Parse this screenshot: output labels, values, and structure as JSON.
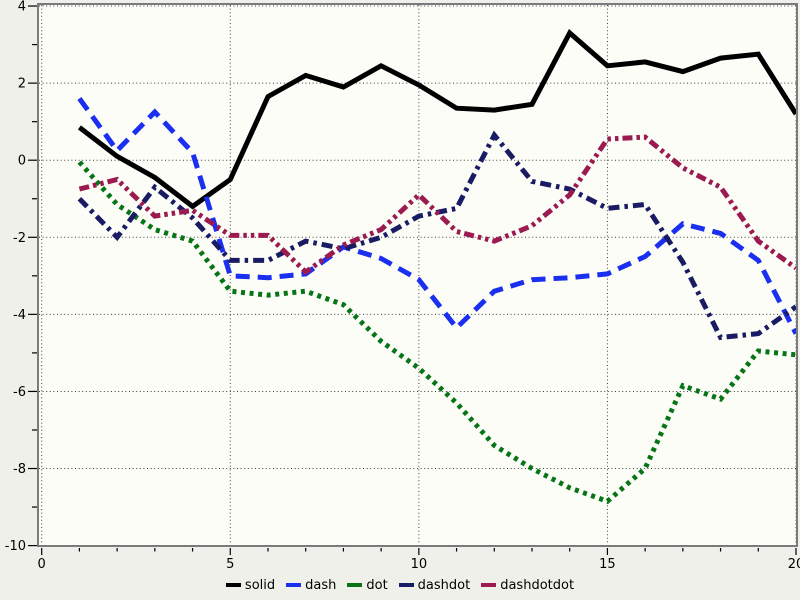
{
  "chart_data": {
    "type": "line",
    "title": "",
    "xlabel": "",
    "ylabel": "",
    "x": [
      1,
      2,
      3,
      4,
      5,
      6,
      7,
      8,
      9,
      10,
      11,
      12,
      13,
      14,
      15,
      16,
      17,
      18,
      19,
      20
    ],
    "series": [
      {
        "name": "solid",
        "dash_style": "solid",
        "color": "#000000",
        "values": [
          0.85,
          0.1,
          -0.45,
          -1.2,
          -0.5,
          1.65,
          2.2,
          1.9,
          2.45,
          1.95,
          1.35,
          1.3,
          1.45,
          3.3,
          2.45,
          2.55,
          2.3,
          2.65,
          2.75,
          1.2
        ]
      },
      {
        "name": "dash",
        "dash_style": "dash",
        "color": "#1b2ff0",
        "values": [
          1.6,
          0.25,
          1.25,
          0.2,
          -3.0,
          -3.05,
          -2.95,
          -2.25,
          -2.55,
          -3.1,
          -4.35,
          -3.4,
          -3.1,
          -3.05,
          -2.95,
          -2.5,
          -1.65,
          -1.9,
          -2.6,
          -4.5
        ]
      },
      {
        "name": "dot",
        "dash_style": "dot",
        "color": "#077417",
        "values": [
          -0.05,
          -1.15,
          -1.8,
          -2.1,
          -3.4,
          -3.5,
          -3.4,
          -3.75,
          -4.7,
          -5.4,
          -6.3,
          -7.4,
          -8.0,
          -8.5,
          -8.85,
          -8.0,
          -5.85,
          -6.2,
          -4.95,
          -5.05
        ]
      },
      {
        "name": "dashdot",
        "dash_style": "dashdot",
        "color": "#191b63",
        "values": [
          -1.0,
          -2.0,
          -0.7,
          -1.5,
          -2.6,
          -2.6,
          -2.1,
          -2.3,
          -2.0,
          -1.45,
          -1.25,
          0.65,
          -0.55,
          -0.75,
          -1.25,
          -1.15,
          -2.65,
          -4.6,
          -4.5,
          -3.8
        ]
      },
      {
        "name": "dashdotdot",
        "dash_style": "dashdotdot",
        "color": "#9b1b50",
        "values": [
          -0.75,
          -0.5,
          -1.45,
          -1.3,
          -1.95,
          -1.95,
          -2.9,
          -2.2,
          -1.8,
          -0.9,
          -1.85,
          -2.1,
          -1.7,
          -0.9,
          0.55,
          0.6,
          -0.2,
          -0.7,
          -2.1,
          -2.8
        ]
      }
    ],
    "xlim": [
      0,
      20
    ],
    "ylim": [
      -10,
      4
    ],
    "x_major_ticks": [
      0,
      5,
      10,
      15,
      20
    ],
    "x_major_tick_labels": [
      "0",
      "5",
      "10",
      "15",
      "20"
    ],
    "x_minor_tick_step": 1,
    "y_major_ticks": [
      4,
      2,
      0,
      -2,
      -4,
      -6,
      -8,
      -10
    ],
    "y_major_tick_labels": [
      "4",
      "2",
      "0",
      "-2",
      "-4",
      "-6",
      "-8",
      "-10"
    ],
    "y_minor_ticks": [
      3,
      1,
      -1,
      -3,
      -5,
      -7,
      -9
    ],
    "grid": {
      "show": true,
      "style": "dotted",
      "color": "#3c3c3c",
      "on_major_ticks": true
    },
    "legend": {
      "position": "bottom-center",
      "labels": [
        "solid",
        "dash",
        "dot",
        "dashdot",
        "dashdotdot"
      ]
    }
  },
  "frame": {
    "plot_bg": "#fdfdf8",
    "page_bg": "#f0f0ea",
    "border_color": "#7a7a7a",
    "tick_color": "#000000",
    "label_color": "#000000"
  }
}
